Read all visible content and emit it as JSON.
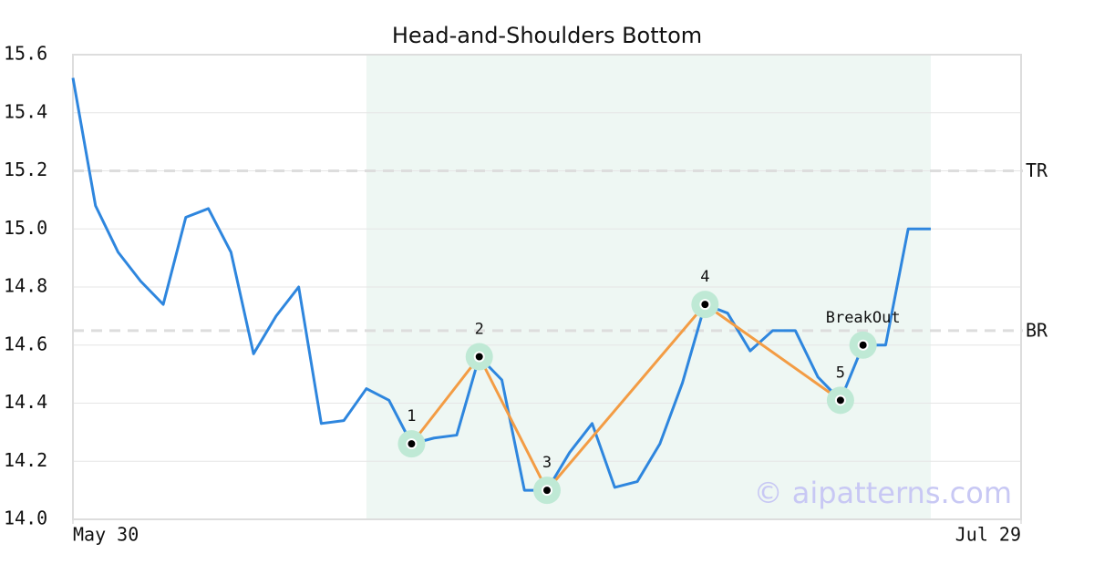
{
  "chart_data": {
    "type": "line",
    "title": "Head-and-Shoulders Bottom",
    "x": [
      0,
      1,
      2,
      3,
      4,
      5,
      6,
      7,
      8,
      9,
      10,
      11,
      12,
      13,
      14,
      15,
      16,
      17,
      18,
      19,
      20,
      21,
      22,
      23,
      24,
      25,
      26,
      27,
      28,
      29,
      30,
      31,
      32,
      33,
      34,
      35,
      36,
      37,
      38
    ],
    "values": [
      15.52,
      15.08,
      14.92,
      14.82,
      14.74,
      15.04,
      15.07,
      14.92,
      14.57,
      14.7,
      14.8,
      14.33,
      14.34,
      14.45,
      14.41,
      14.26,
      14.28,
      14.29,
      14.56,
      14.48,
      14.1,
      14.1,
      14.23,
      14.33,
      14.11,
      14.13,
      14.26,
      14.47,
      14.74,
      14.71,
      14.58,
      14.65,
      14.65,
      14.49,
      14.41,
      14.6,
      14.6,
      15.0,
      15.0
    ],
    "color": "#2e86de",
    "xlim": [
      0,
      42
    ],
    "xticks": [
      {
        "value": 0,
        "label": "May 30"
      },
      {
        "value": 42,
        "label": "Jul 29"
      }
    ],
    "ylim": [
      14.0,
      15.6
    ],
    "yticks": [
      {
        "value": 14.0,
        "label": "14.0"
      },
      14.2,
      14.4,
      14.6,
      14.8,
      {
        "value": 15.0,
        "label": "15.0"
      },
      15.2,
      15.4,
      15.6
    ],
    "grid": true,
    "highlight": {
      "x": [
        13,
        38
      ],
      "color": "#eef7f3"
    },
    "levels": [
      {
        "label": "TR",
        "value": 15.2
      },
      {
        "label": "BR",
        "value": 14.65
      }
    ],
    "pattern": {
      "color": "#f39c44",
      "points": [
        {
          "label": "1",
          "x": 15,
          "y": 14.26
        },
        {
          "label": "2",
          "x": 18,
          "y": 14.56
        },
        {
          "label": "3",
          "x": 21,
          "y": 14.1
        },
        {
          "label": "4",
          "x": 28,
          "y": 14.74
        },
        {
          "label": "5",
          "x": 34,
          "y": 14.41
        }
      ]
    },
    "breakout": {
      "label": "BreakOut",
      "x": 35,
      "y": 14.6
    },
    "watermark": "© aipatterns.com"
  }
}
